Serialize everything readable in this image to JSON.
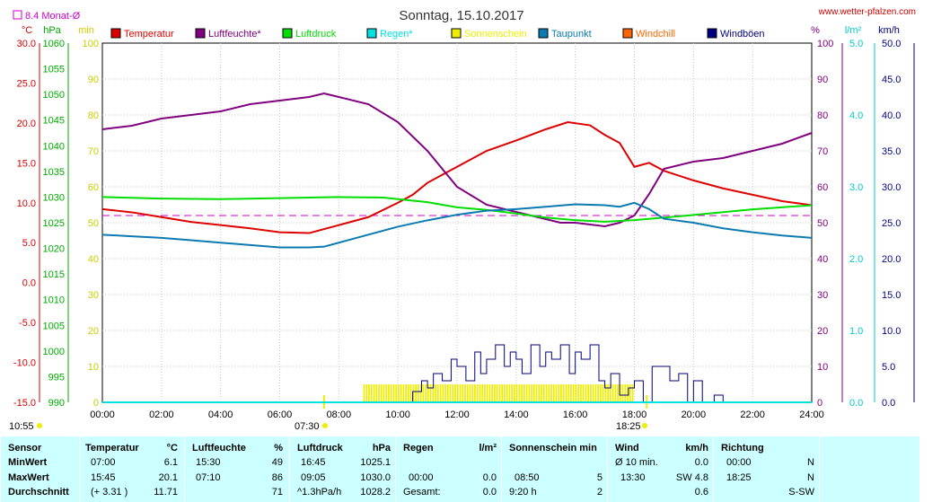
{
  "header": {
    "title": "Sonntag, 15.10.2017",
    "site": "www.wetter-pfalzen.com",
    "avg_label": "8.4 Monat-Ø",
    "avg_color": "#cc00cc"
  },
  "legend": [
    {
      "label": "Temperatur",
      "color": "#dd0000"
    },
    {
      "label": "Luftfeuchte*",
      "color": "#800080"
    },
    {
      "label": "Luftdruck",
      "color": "#00dd00"
    },
    {
      "label": "Regen*",
      "color": "#00e0e0"
    },
    {
      "label": "Sonnenschein",
      "color": "#eeee00"
    },
    {
      "label": "Taupunkt",
      "color": "#0a7ab0"
    },
    {
      "label": "Windchill",
      "color": "#ff6600"
    },
    {
      "label": "Windböen",
      "color": "#000080"
    }
  ],
  "chart_data": {
    "type": "line",
    "x_unit": "hours",
    "xlim": [
      0,
      24
    ],
    "x_ticks": [
      "00:00",
      "02:00",
      "04:00",
      "06:00",
      "08:00",
      "10:00",
      "12:00",
      "14:00",
      "16:00",
      "18:00",
      "20:00",
      "22:00",
      "24:00"
    ],
    "axes": {
      "temp": {
        "unit": "°C",
        "color": "#dd0000",
        "ylim": [
          -15,
          30
        ],
        "ticks": [
          "30.0",
          "25.0",
          "20.0",
          "15.0",
          "10.0",
          "5.0",
          "0.0",
          "-5.0",
          "-10.0",
          "-15.0"
        ]
      },
      "pressure": {
        "unit": "hPa",
        "color": "#00aa00",
        "ylim": [
          990,
          1060
        ],
        "ticks": [
          "1060",
          "1055",
          "1050",
          "1045",
          "1040",
          "1035",
          "1030",
          "1025",
          "1020",
          "1015",
          "1010",
          "1005",
          "1000",
          "995",
          "990"
        ]
      },
      "sun": {
        "unit": "min",
        "color": "#cccc00",
        "ylim": [
          0,
          100
        ],
        "ticks": [
          "100",
          "90",
          "80",
          "70",
          "60",
          "50",
          "40",
          "30",
          "20",
          "10",
          "0"
        ]
      },
      "humidity": {
        "unit": "%",
        "color": "#800080",
        "ylim": [
          0,
          100
        ],
        "ticks": [
          "100",
          "90",
          "80",
          "70",
          "60",
          "50",
          "40",
          "30",
          "20",
          "10",
          "0"
        ]
      },
      "rain": {
        "unit": "l/m²",
        "color": "#00cccc",
        "ylim": [
          0,
          5
        ],
        "ticks": [
          "5.0",
          "4.0",
          "3.0",
          "2.0",
          "1.0",
          "0.0"
        ]
      },
      "wind": {
        "unit": "km/h",
        "color": "#000080",
        "ylim": [
          0,
          50
        ],
        "ticks": [
          "50.0",
          "45.0",
          "40.0",
          "35.0",
          "30.0",
          "25.0",
          "20.0",
          "15.0",
          "10.0",
          "5.0",
          "0.0"
        ]
      }
    },
    "month_avg_temp": 8.4,
    "sunrise": "07:30",
    "sunset": "18:25",
    "day_length": "10:55",
    "series": [
      {
        "name": "Temperatur",
        "axis": "temp",
        "color": "#dd0000",
        "x": [
          0,
          1,
          2,
          3,
          4,
          5,
          6,
          7,
          8,
          9,
          10,
          10.5,
          11,
          11.5,
          12,
          13,
          14,
          15,
          15.75,
          16.5,
          17,
          17.5,
          18,
          18.5,
          19,
          20,
          21,
          22,
          23,
          24
        ],
        "y": [
          9.2,
          8.8,
          8.2,
          7.6,
          7.2,
          6.8,
          6.3,
          6.2,
          7.2,
          8.2,
          10.0,
          11.0,
          12.5,
          13.5,
          14.5,
          16.5,
          17.8,
          19.2,
          20.1,
          19.7,
          18.5,
          17.5,
          14.5,
          15.0,
          14.0,
          12.8,
          11.8,
          11.0,
          10.2,
          9.7
        ]
      },
      {
        "name": "Luftfeuchte*",
        "axis": "humidity",
        "color": "#800080",
        "x": [
          0,
          1,
          2,
          3,
          4,
          5,
          6,
          7,
          7.5,
          8,
          9,
          10,
          11,
          12,
          13,
          14,
          15,
          15.5,
          16,
          17,
          17.5,
          18,
          18.5,
          19,
          20,
          21,
          22,
          23,
          24
        ],
        "y": [
          76,
          77,
          79,
          80,
          81,
          83,
          84,
          85,
          86,
          85,
          83,
          78,
          70,
          60,
          55,
          53,
          51,
          50,
          50,
          49,
          50,
          52,
          58,
          65,
          67,
          68,
          70,
          72,
          75
        ]
      },
      {
        "name": "Luftdruck",
        "axis": "pressure",
        "color": "#00dd00",
        "x": [
          0,
          2,
          4,
          6,
          8,
          9.5,
          11,
          12,
          13,
          14,
          15,
          16,
          17,
          18,
          20,
          22,
          24
        ],
        "y": [
          1030,
          1029.7,
          1029.6,
          1029.8,
          1030,
          1029.9,
          1029,
          1028,
          1027.5,
          1026.8,
          1026,
          1025.5,
          1025.2,
          1025.5,
          1026.5,
          1027.6,
          1028.4
        ]
      },
      {
        "name": "Taupunkt",
        "axis": "temp",
        "color": "#0a7ab0",
        "x": [
          0,
          1,
          2,
          3,
          4,
          5,
          6,
          7,
          7.5,
          8,
          9,
          10,
          11,
          12,
          13,
          14,
          15,
          16,
          17,
          17.5,
          18,
          18.5,
          19,
          20,
          21,
          22,
          23,
          24
        ],
        "y": [
          6.0,
          5.8,
          5.6,
          5.3,
          5.0,
          4.7,
          4.4,
          4.4,
          4.5,
          5.0,
          6.0,
          7.0,
          7.8,
          8.5,
          9.0,
          9.2,
          9.5,
          9.8,
          9.7,
          9.5,
          10.0,
          9.2,
          8.0,
          7.5,
          6.8,
          6.3,
          5.9,
          5.6
        ]
      },
      {
        "name": "Sonnenschein",
        "axis": "sun",
        "color": "#eeee00",
        "type": "bar",
        "segments": [
          {
            "start": 8.83,
            "end": 18.0,
            "value": 5
          }
        ]
      },
      {
        "name": "Windböen",
        "axis": "wind",
        "color": "#000080",
        "type": "step",
        "x": [
          10,
          10.5,
          10.8,
          11,
          11.2,
          11.5,
          11.8,
          12,
          12.3,
          12.6,
          12.8,
          13,
          13.3,
          13.6,
          13.8,
          14,
          14.2,
          14.5,
          14.8,
          15,
          15.2,
          15.5,
          15.8,
          16,
          16.2,
          16.5,
          16.8,
          17,
          17.2,
          17.5,
          17.8,
          18,
          18.3,
          18.6,
          18.9,
          19.2,
          19.5,
          19.8,
          20,
          20.3,
          20.7,
          21,
          24
        ],
        "y": [
          0,
          1.5,
          3,
          2,
          4,
          3,
          6,
          5,
          3,
          7,
          4,
          6,
          8,
          5,
          7,
          6,
          4,
          8,
          5,
          7,
          6,
          8,
          4,
          7,
          6,
          8,
          3,
          2,
          4,
          1,
          2,
          3,
          0,
          5,
          5,
          3,
          4,
          0,
          3,
          0,
          1,
          0,
          0
        ]
      },
      {
        "name": "Regen*",
        "axis": "rain",
        "color": "#00e0e0",
        "x": [
          0,
          24
        ],
        "y": [
          0,
          0
        ]
      }
    ]
  },
  "table": {
    "headers": {
      "sensor": "Sensor",
      "temp": "Temperatur",
      "temp_unit": "°C",
      "hum": "Luftfeuchte",
      "hum_unit": "%",
      "press": "Luftdruck",
      "press_unit": "hPa",
      "rain": "Regen",
      "rain_unit": "l/m²",
      "sun": "Sonnenschein min",
      "wind": "Wind",
      "wind_unit": "km/h",
      "dir": "Richtung"
    },
    "rows": [
      {
        "label": "MinWert",
        "temp_time": "07:00",
        "temp_val": "6.1",
        "hum_time": "15:30",
        "hum_val": "49",
        "press_time": "16:45",
        "press_val": "1025.1",
        "rain_time": "",
        "rain_val": "",
        "sun_time": "",
        "sun_val": "",
        "wind_time": "Ø 10 min.",
        "wind_val": "0.0",
        "dir_time": "00:00",
        "dir_val": "N"
      },
      {
        "label": "MaxWert",
        "temp_time": "15:45",
        "temp_val": "20.1",
        "hum_time": "07:10",
        "hum_val": "86",
        "press_time": "09:05",
        "press_val": "1030.0",
        "rain_time": "00:00",
        "rain_val": "0.0",
        "sun_time": "08:50",
        "sun_val": "5",
        "wind_time": "13:30",
        "wind_val": "SW 4.8",
        "dir_time": "18:25",
        "dir_val": "N"
      },
      {
        "label": "Durchschnitt",
        "temp_time": "(+ 3.31 )",
        "temp_val": "11.71",
        "hum_time": "",
        "hum_val": "71",
        "press_time": "^1.3hPa/h",
        "press_val": "1028.2",
        "rain_time": "Gesamt:",
        "rain_val": "0.0",
        "sun_time": "9:20 h",
        "sun_val": "2",
        "wind_time": "",
        "wind_val": "0.6",
        "dir_time": "",
        "dir_val": "S-SW"
      }
    ]
  }
}
